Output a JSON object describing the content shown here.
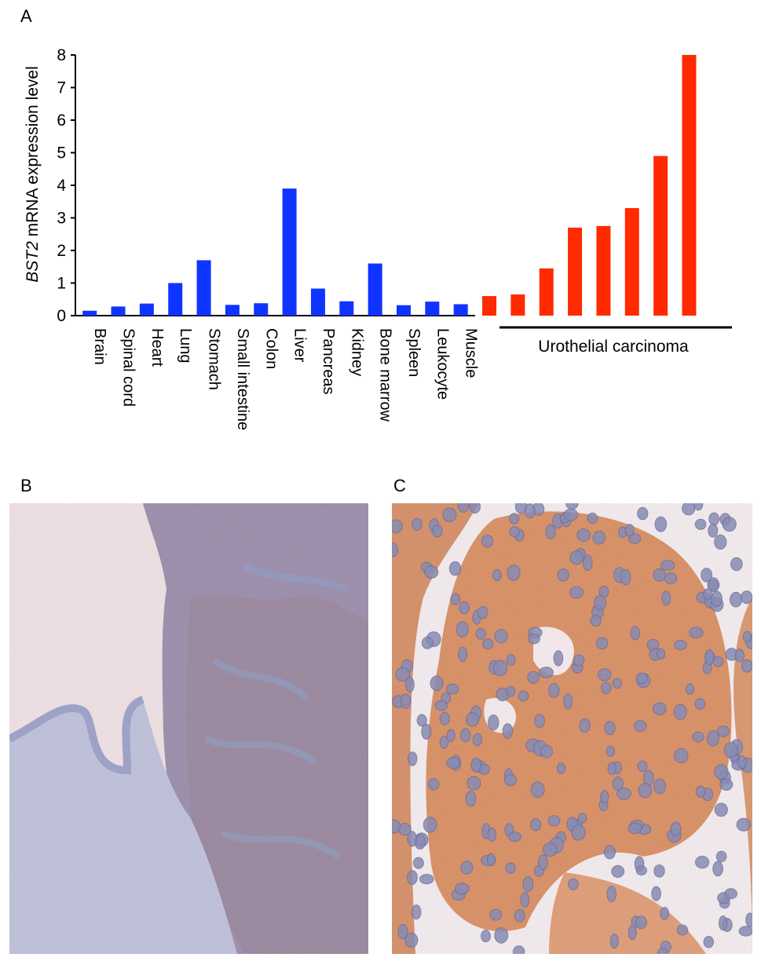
{
  "panels": {
    "a": "A",
    "b": "B",
    "c": "C"
  },
  "chart_data": {
    "type": "bar",
    "ylabel_italic": "BST2",
    "ylabel_rest": " mRNA expression level",
    "ylim": [
      0,
      8
    ],
    "yticks": [
      0,
      1,
      2,
      3,
      4,
      5,
      6,
      7,
      8
    ],
    "categories": [
      "Brain",
      "Spinal cord",
      "Heart",
      "Lung",
      "Stomach",
      "Small intestine",
      "Colon",
      "Liver",
      "Pancreas",
      "Kidney",
      "Bone marrow",
      "Spleen",
      "Leukocyte",
      "Muscle",
      "",
      "",
      "",
      "",
      "",
      "",
      "",
      "",
      ""
    ],
    "values": [
      0.15,
      0.28,
      0.37,
      1.0,
      1.7,
      0.33,
      0.38,
      3.9,
      0.83,
      0.44,
      1.6,
      0.32,
      0.43,
      0.35,
      0.6,
      0.65,
      1.45,
      2.7,
      2.75,
      3.3,
      4.9,
      8.0,
      0.0
    ],
    "group_label": "Urothelial carcinoma",
    "colors": {
      "normal": "#1034ff",
      "carcinoma": "#ff2a00"
    },
    "grid": false
  },
  "images": {
    "b": {
      "subject": "immunohistochemistry low magnification",
      "colors": {
        "background": "#fbeae6",
        "tissue": "#9a8aa8",
        "stain": "#b08a70"
      }
    },
    "c": {
      "subject": "immunohistochemistry high magnification",
      "colors": {
        "background": "#f1f0f8",
        "cytoplasm": "#d48a60",
        "nuclei": "#7a86b8"
      }
    }
  }
}
